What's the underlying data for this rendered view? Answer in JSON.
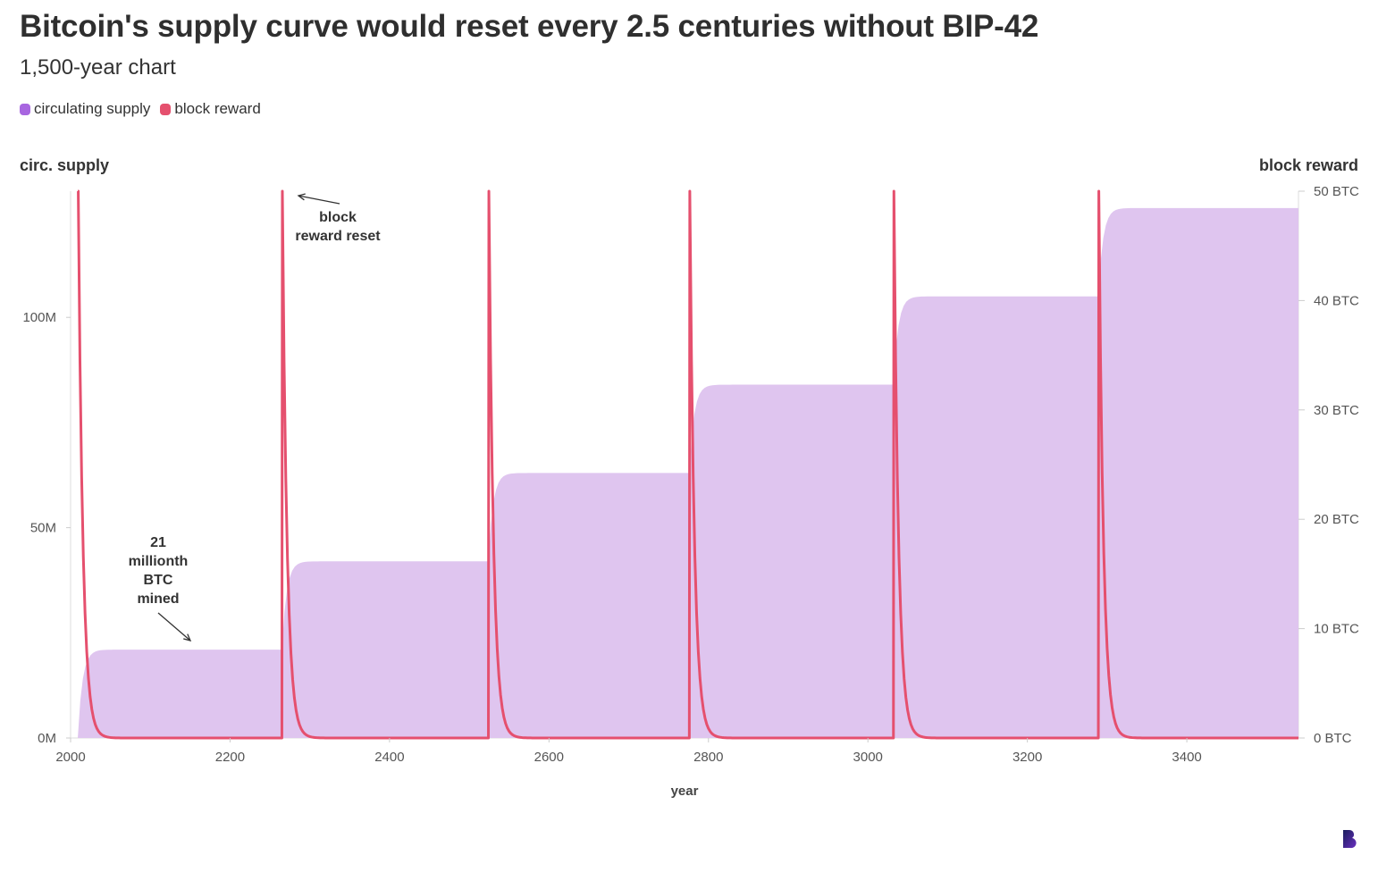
{
  "title": "Bitcoin's supply curve would reset every 2.5 centuries without BIP-42",
  "subtitle": "1,500-year chart",
  "legend": [
    {
      "label": "circulating supply",
      "color": "#a866e0"
    },
    {
      "label": "block reward",
      "color": "#e5506e"
    }
  ],
  "colors": {
    "supply_fill": "#dfc5ef",
    "reward_line": "#e5506e",
    "axis_text": "#555555",
    "axis_line": "#dddddd"
  },
  "logo_icon": "brand-logo-icon",
  "chart_data": {
    "type": "area",
    "xlabel": "year",
    "ylabel_left": "circ. supply",
    "ylabel_right": "block reward",
    "xlim": [
      2000,
      3540
    ],
    "xticks": [
      2000,
      2200,
      2400,
      2600,
      2800,
      3000,
      3200,
      3400
    ],
    "ylim_left": [
      0,
      130000000
    ],
    "yticks_left": [
      {
        "value": 0,
        "label": "0M"
      },
      {
        "value": 50000000,
        "label": "50M"
      },
      {
        "value": 100000000,
        "label": "100M"
      }
    ],
    "ylim_right": [
      0,
      50
    ],
    "yticks_right": [
      {
        "value": 0,
        "label": "0 BTC"
      },
      {
        "value": 10,
        "label": "10 BTC"
      },
      {
        "value": 20,
        "label": "20 BTC"
      },
      {
        "value": 30,
        "label": "30 BTC"
      },
      {
        "value": 40,
        "label": "40 BTC"
      },
      {
        "value": 50,
        "label": "50 BTC"
      }
    ],
    "series": [
      {
        "name": "circulating supply",
        "axis": "left",
        "epochs": [
          {
            "start_year": 2009,
            "end_year": 2265,
            "start_supply": 0,
            "plateau": 21000000
          },
          {
            "start_year": 2265,
            "end_year": 2524,
            "start_supply": 21000000,
            "plateau": 42000000
          },
          {
            "start_year": 2524,
            "end_year": 2776,
            "start_supply": 42000000,
            "plateau": 63000000
          },
          {
            "start_year": 2776,
            "end_year": 3032,
            "start_supply": 63000000,
            "plateau": 84000000
          },
          {
            "start_year": 3032,
            "end_year": 3289,
            "start_supply": 84000000,
            "plateau": 105000000
          },
          {
            "start_year": 3289,
            "end_year": 3540,
            "start_supply": 105000000,
            "plateau": 126000000
          }
        ]
      },
      {
        "name": "block reward",
        "axis": "right",
        "peak_btc": 50,
        "halving_period_years": 4,
        "reset_years": [
          2009,
          2265,
          2524,
          2776,
          3032,
          3289
        ]
      }
    ],
    "annotations": [
      {
        "id": "reset",
        "text_lines": [
          "block",
          "reward reset"
        ]
      },
      {
        "id": "mined",
        "text_lines": [
          "21",
          "millionth",
          "BTC",
          "mined"
        ]
      }
    ]
  }
}
